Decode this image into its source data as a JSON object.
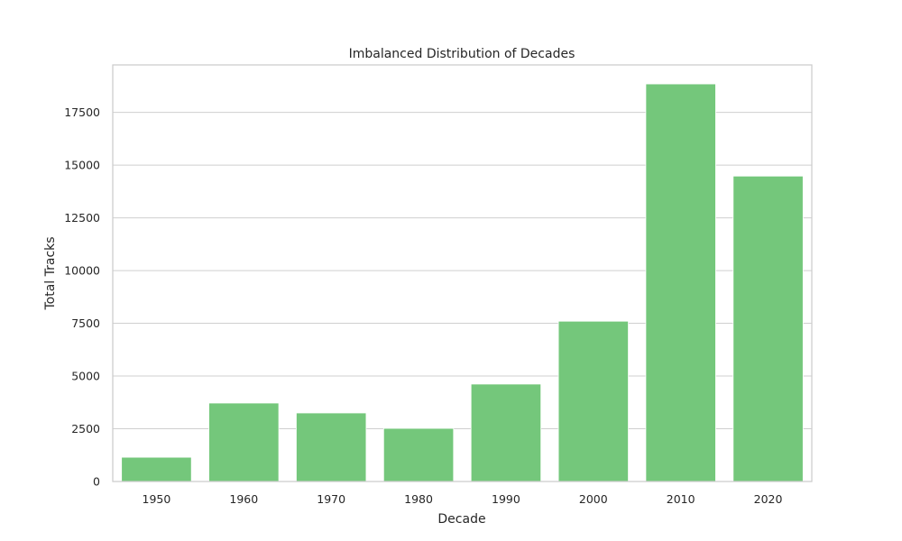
{
  "chart_data": {
    "type": "bar",
    "title": "Imbalanced Distribution of Decades",
    "xlabel": "Decade",
    "ylabel": "Total Tracks",
    "categories": [
      "1950",
      "1960",
      "1970",
      "1980",
      "1990",
      "2000",
      "2010",
      "2020"
    ],
    "values": [
      1150,
      3720,
      3250,
      2520,
      4620,
      7600,
      18850,
      14480
    ],
    "ylim": [
      0,
      19750
    ],
    "yticks": [
      0,
      2500,
      5000,
      7500,
      10000,
      12500,
      15000,
      17500
    ],
    "ytick_labels": [
      "0",
      "2500",
      "5000",
      "7500",
      "10000",
      "12500",
      "15000",
      "17500"
    ],
    "grid": "horizontal",
    "bar_color": "#74c77b",
    "grid_color": "#cfcfcf",
    "frame_color": "#cccccc"
  }
}
